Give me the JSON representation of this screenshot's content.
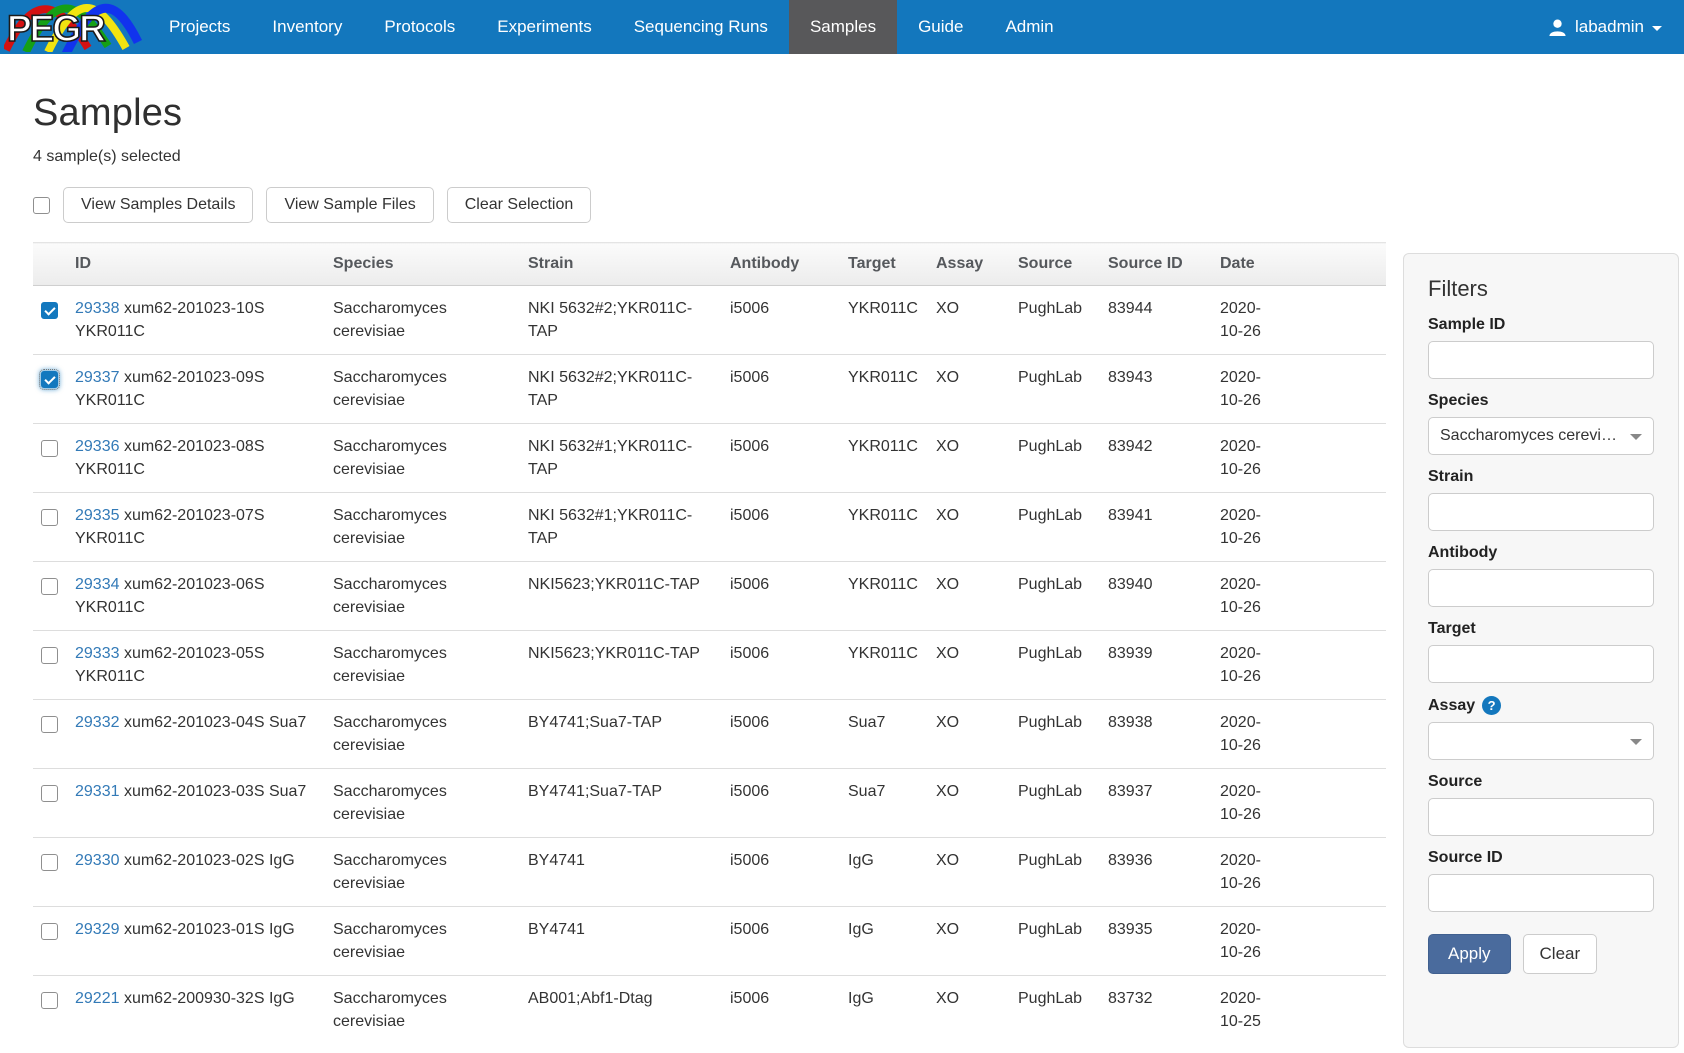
{
  "nav": {
    "brand": "PEGR",
    "items": [
      {
        "label": "Projects"
      },
      {
        "label": "Inventory"
      },
      {
        "label": "Protocols"
      },
      {
        "label": "Experiments"
      },
      {
        "label": "Sequencing Runs"
      },
      {
        "label": "Samples",
        "active": true
      },
      {
        "label": "Guide"
      },
      {
        "label": "Admin"
      }
    ],
    "user": {
      "name": "labadmin"
    }
  },
  "page": {
    "title": "Samples",
    "selection_summary": "4 sample(s) selected"
  },
  "toolbar": {
    "view_samples_details": "View Samples Details",
    "view_sample_files": "View Sample Files",
    "clear_selection": "Clear Selection"
  },
  "icons": {
    "help_question": "?",
    "user": "user-silhouette",
    "caret": "caret-down"
  },
  "table": {
    "columns": [
      "ID",
      "Species",
      "Strain",
      "Antibody",
      "Target",
      "Assay",
      "Source",
      "Source ID",
      "Date"
    ],
    "rows": [
      {
        "id": "29338",
        "name": "xum62-201023-10S YKR011C",
        "species": "Saccharomyces cerevisiae",
        "strain": "NKI 5632#2;YKR011C-TAP",
        "antibody": "i5006",
        "target": "YKR011C",
        "assay": "XO",
        "source": "PughLab",
        "source_id": "83944",
        "date": "2020-10-26",
        "checked": true,
        "focused": false
      },
      {
        "id": "29337",
        "name": "xum62-201023-09S YKR011C",
        "species": "Saccharomyces cerevisiae",
        "strain": "NKI 5632#2;YKR011C-TAP",
        "antibody": "i5006",
        "target": "YKR011C",
        "assay": "XO",
        "source": "PughLab",
        "source_id": "83943",
        "date": "2020-10-26",
        "checked": true,
        "focused": true
      },
      {
        "id": "29336",
        "name": "xum62-201023-08S YKR011C",
        "species": "Saccharomyces cerevisiae",
        "strain": "NKI 5632#1;YKR011C-TAP",
        "antibody": "i5006",
        "target": "YKR011C",
        "assay": "XO",
        "source": "PughLab",
        "source_id": "83942",
        "date": "2020-10-26",
        "checked": false,
        "focused": false
      },
      {
        "id": "29335",
        "name": "xum62-201023-07S YKR011C",
        "species": "Saccharomyces cerevisiae",
        "strain": "NKI 5632#1;YKR011C-TAP",
        "antibody": "i5006",
        "target": "YKR011C",
        "assay": "XO",
        "source": "PughLab",
        "source_id": "83941",
        "date": "2020-10-26",
        "checked": false,
        "focused": false
      },
      {
        "id": "29334",
        "name": "xum62-201023-06S YKR011C",
        "species": "Saccharomyces cerevisiae",
        "strain": "NKI5623;YKR011C-TAP",
        "antibody": "i5006",
        "target": "YKR011C",
        "assay": "XO",
        "source": "PughLab",
        "source_id": "83940",
        "date": "2020-10-26",
        "checked": false,
        "focused": false
      },
      {
        "id": "29333",
        "name": "xum62-201023-05S YKR011C",
        "species": "Saccharomyces cerevisiae",
        "strain": "NKI5623;YKR011C-TAP",
        "antibody": "i5006",
        "target": "YKR011C",
        "assay": "XO",
        "source": "PughLab",
        "source_id": "83939",
        "date": "2020-10-26",
        "checked": false,
        "focused": false
      },
      {
        "id": "29332",
        "name": "xum62-201023-04S Sua7",
        "species": "Saccharomyces cerevisiae",
        "strain": "BY4741;Sua7-TAP",
        "antibody": "i5006",
        "target": "Sua7",
        "assay": "XO",
        "source": "PughLab",
        "source_id": "83938",
        "date": "2020-10-26",
        "checked": false,
        "focused": false
      },
      {
        "id": "29331",
        "name": "xum62-201023-03S Sua7",
        "species": "Saccharomyces cerevisiae",
        "strain": "BY4741;Sua7-TAP",
        "antibody": "i5006",
        "target": "Sua7",
        "assay": "XO",
        "source": "PughLab",
        "source_id": "83937",
        "date": "2020-10-26",
        "checked": false,
        "focused": false
      },
      {
        "id": "29330",
        "name": "xum62-201023-02S IgG",
        "species": "Saccharomyces cerevisiae",
        "strain": "BY4741",
        "antibody": "i5006",
        "target": "IgG",
        "assay": "XO",
        "source": "PughLab",
        "source_id": "83936",
        "date": "2020-10-26",
        "checked": false,
        "focused": false
      },
      {
        "id": "29329",
        "name": "xum62-201023-01S IgG",
        "species": "Saccharomyces cerevisiae",
        "strain": "BY4741",
        "antibody": "i5006",
        "target": "IgG",
        "assay": "XO",
        "source": "PughLab",
        "source_id": "83935",
        "date": "2020-10-26",
        "checked": false,
        "focused": false
      },
      {
        "id": "29221",
        "name": "xum62-200930-32S IgG",
        "species": "Saccharomyces cerevisiae",
        "strain": "AB001;Abf1-Dtag",
        "antibody": "i5006",
        "target": "IgG",
        "assay": "XO",
        "source": "PughLab",
        "source_id": "83732",
        "date": "2020-10-25",
        "checked": false,
        "focused": false
      }
    ]
  },
  "filters": {
    "title": "Filters",
    "sample_id": {
      "label": "Sample ID",
      "value": ""
    },
    "species": {
      "label": "Species",
      "selected": "Saccharomyces cerevisiae"
    },
    "strain": {
      "label": "Strain",
      "value": ""
    },
    "antibody": {
      "label": "Antibody",
      "value": ""
    },
    "target": {
      "label": "Target",
      "value": ""
    },
    "assay": {
      "label": "Assay",
      "selected": ""
    },
    "source": {
      "label": "Source",
      "value": ""
    },
    "source_id": {
      "label": "Source ID",
      "value": ""
    },
    "apply_label": "Apply",
    "clear_label": "Clear"
  },
  "colors": {
    "nav_bg": "#1377bd",
    "nav_active_bg": "#58585a",
    "link": "#337ab7",
    "apply_bg": "#4a6b9d",
    "checkbox_checked": "#1378be"
  }
}
